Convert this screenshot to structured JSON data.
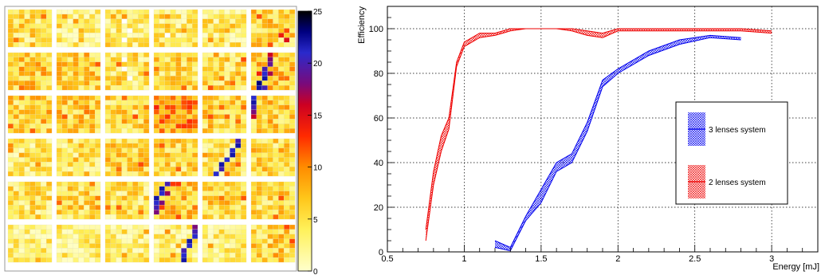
{
  "heatmap": {
    "grid_rows": 6,
    "grid_cols": 6,
    "pixels_per_block": 8,
    "color_scale": {
      "min": 0,
      "max": 25,
      "ticks": [
        "0",
        "5",
        "10",
        "15",
        "20",
        "25"
      ],
      "stops": [
        {
          "v": 0,
          "c": "#ffffcc"
        },
        {
          "v": 4,
          "c": "#fff15a"
        },
        {
          "v": 7,
          "c": "#ffc61a"
        },
        {
          "v": 10,
          "c": "#ff8c00"
        },
        {
          "v": 13,
          "c": "#ff2a00"
        },
        {
          "v": 16,
          "c": "#cc0022"
        },
        {
          "v": 18,
          "c": "#7a0a7a"
        },
        {
          "v": 21,
          "c": "#2a2acc"
        },
        {
          "v": 23,
          "c": "#000080"
        },
        {
          "v": 25,
          "c": "#000000"
        }
      ]
    },
    "seed": 7,
    "block_base_levels": [
      [
        4.5,
        2.5,
        3.0,
        4.0,
        3.5,
        5.5
      ],
      [
        6.5,
        6.0,
        4.5,
        5.0,
        5.0,
        7.0
      ],
      [
        5.5,
        6.0,
        5.0,
        9.0,
        5.5,
        6.0
      ],
      [
        3.5,
        4.5,
        5.5,
        5.0,
        4.5,
        5.0
      ],
      [
        4.5,
        5.0,
        4.5,
        6.5,
        5.5,
        5.0
      ],
      [
        2.5,
        3.0,
        3.0,
        3.0,
        3.0,
        5.5
      ]
    ],
    "track": [
      {
        "br": 0,
        "bc": 5,
        "cells": [
          [
            5,
            5,
            14
          ],
          [
            6,
            6,
            15
          ],
          [
            4,
            6,
            12
          ]
        ]
      },
      {
        "br": 1,
        "bc": 5,
        "cells": [
          [
            0,
            3,
            16
          ],
          [
            1,
            3,
            18
          ],
          [
            2,
            3,
            19
          ],
          [
            3,
            2,
            20
          ],
          [
            4,
            2,
            21
          ],
          [
            5,
            2,
            22
          ],
          [
            6,
            1,
            23
          ],
          [
            7,
            1,
            22
          ],
          [
            7,
            2,
            20
          ],
          [
            4,
            3,
            17
          ]
        ]
      },
      {
        "br": 2,
        "bc": 5,
        "cells": [
          [
            0,
            0,
            21
          ],
          [
            1,
            0,
            22
          ],
          [
            2,
            0,
            20
          ],
          [
            3,
            0,
            18
          ],
          [
            4,
            0,
            16
          ]
        ]
      },
      {
        "br": 3,
        "bc": 4,
        "cells": [
          [
            0,
            6,
            20
          ],
          [
            1,
            6,
            22
          ],
          [
            2,
            5,
            21
          ],
          [
            3,
            5,
            22
          ],
          [
            4,
            4,
            21
          ],
          [
            5,
            3,
            22
          ],
          [
            6,
            3,
            20
          ],
          [
            7,
            2,
            21
          ]
        ]
      },
      {
        "br": 4,
        "bc": 3,
        "cells": [
          [
            0,
            2,
            20
          ],
          [
            1,
            1,
            22
          ],
          [
            2,
            1,
            21
          ],
          [
            3,
            0,
            22
          ],
          [
            4,
            0,
            21
          ],
          [
            5,
            0,
            20
          ],
          [
            6,
            0,
            18
          ],
          [
            2,
            2,
            17
          ],
          [
            4,
            1,
            18
          ]
        ]
      },
      {
        "br": 5,
        "bc": 3,
        "cells": [
          [
            0,
            7,
            18
          ],
          [
            1,
            7,
            20
          ],
          [
            2,
            7,
            21
          ],
          [
            3,
            6,
            22
          ],
          [
            4,
            6,
            21
          ],
          [
            5,
            5,
            20
          ],
          [
            6,
            5,
            21
          ],
          [
            7,
            5,
            22
          ]
        ]
      }
    ],
    "white_cells": [
      {
        "br": 0,
        "bc": 2,
        "cells": [
          [
            2,
            3
          ],
          [
            4,
            4
          ],
          [
            6,
            3
          ]
        ]
      },
      {
        "br": 0,
        "bc": 3,
        "cells": [
          [
            5,
            2
          ]
        ]
      },
      {
        "br": 1,
        "bc": 2,
        "cells": [
          [
            1,
            3
          ],
          [
            3,
            3
          ],
          [
            5,
            4
          ]
        ]
      }
    ]
  },
  "chart_data": {
    "type": "area",
    "title": "",
    "xlabel": "Energy [mJ]",
    "ylabel": "Efficiency",
    "xlim": [
      0.5,
      3.3
    ],
    "ylim": [
      0,
      110
    ],
    "x_ticks": [
      {
        "v": 0.5,
        "label": "0.5"
      },
      {
        "v": 1,
        "label": "1"
      },
      {
        "v": 1.5,
        "label": "1.5"
      },
      {
        "v": 2,
        "label": "2"
      },
      {
        "v": 2.5,
        "label": "2.5"
      },
      {
        "v": 3,
        "label": "3"
      }
    ],
    "y_ticks": [
      {
        "v": 0,
        "label": "0"
      },
      {
        "v": 20,
        "label": "20"
      },
      {
        "v": 40,
        "label": "40"
      },
      {
        "v": 60,
        "label": "60"
      },
      {
        "v": 80,
        "label": "80"
      },
      {
        "v": 100,
        "label": "100"
      }
    ],
    "grid": true,
    "legend_position": "right",
    "series": [
      {
        "name": "3 lenses system",
        "color": "#0000ee",
        "x": [
          1.2,
          1.3,
          1.4,
          1.5,
          1.6,
          1.7,
          1.8,
          1.9,
          2.0,
          2.2,
          2.4,
          2.6,
          2.8
        ],
        "lower": [
          2,
          0.5,
          14,
          22,
          36,
          40,
          54,
          74,
          80,
          88,
          93,
          96,
          95
        ],
        "upper": [
          5,
          2,
          16,
          28,
          40,
          44,
          58,
          77,
          82,
          90,
          95,
          97,
          96
        ]
      },
      {
        "name": "2 lenses system",
        "color": "#ee0000",
        "x": [
          0.75,
          0.8,
          0.85,
          0.9,
          0.95,
          1.0,
          1.1,
          1.2,
          1.3,
          1.4,
          1.5,
          1.6,
          1.7,
          1.8,
          1.9,
          2.0,
          2.2,
          2.4,
          2.6,
          2.8,
          3.0
        ],
        "lower": [
          5,
          30,
          45,
          55,
          83,
          92,
          96,
          97,
          99,
          100,
          100,
          100,
          99,
          97,
          96,
          99,
          99,
          99,
          99,
          99,
          98
        ],
        "upper": [
          10,
          36,
          52,
          60,
          85,
          94,
          98,
          98,
          100,
          100,
          100,
          100,
          100,
          99,
          98,
          100,
          100,
          100,
          100,
          100,
          99
        ]
      }
    ]
  }
}
